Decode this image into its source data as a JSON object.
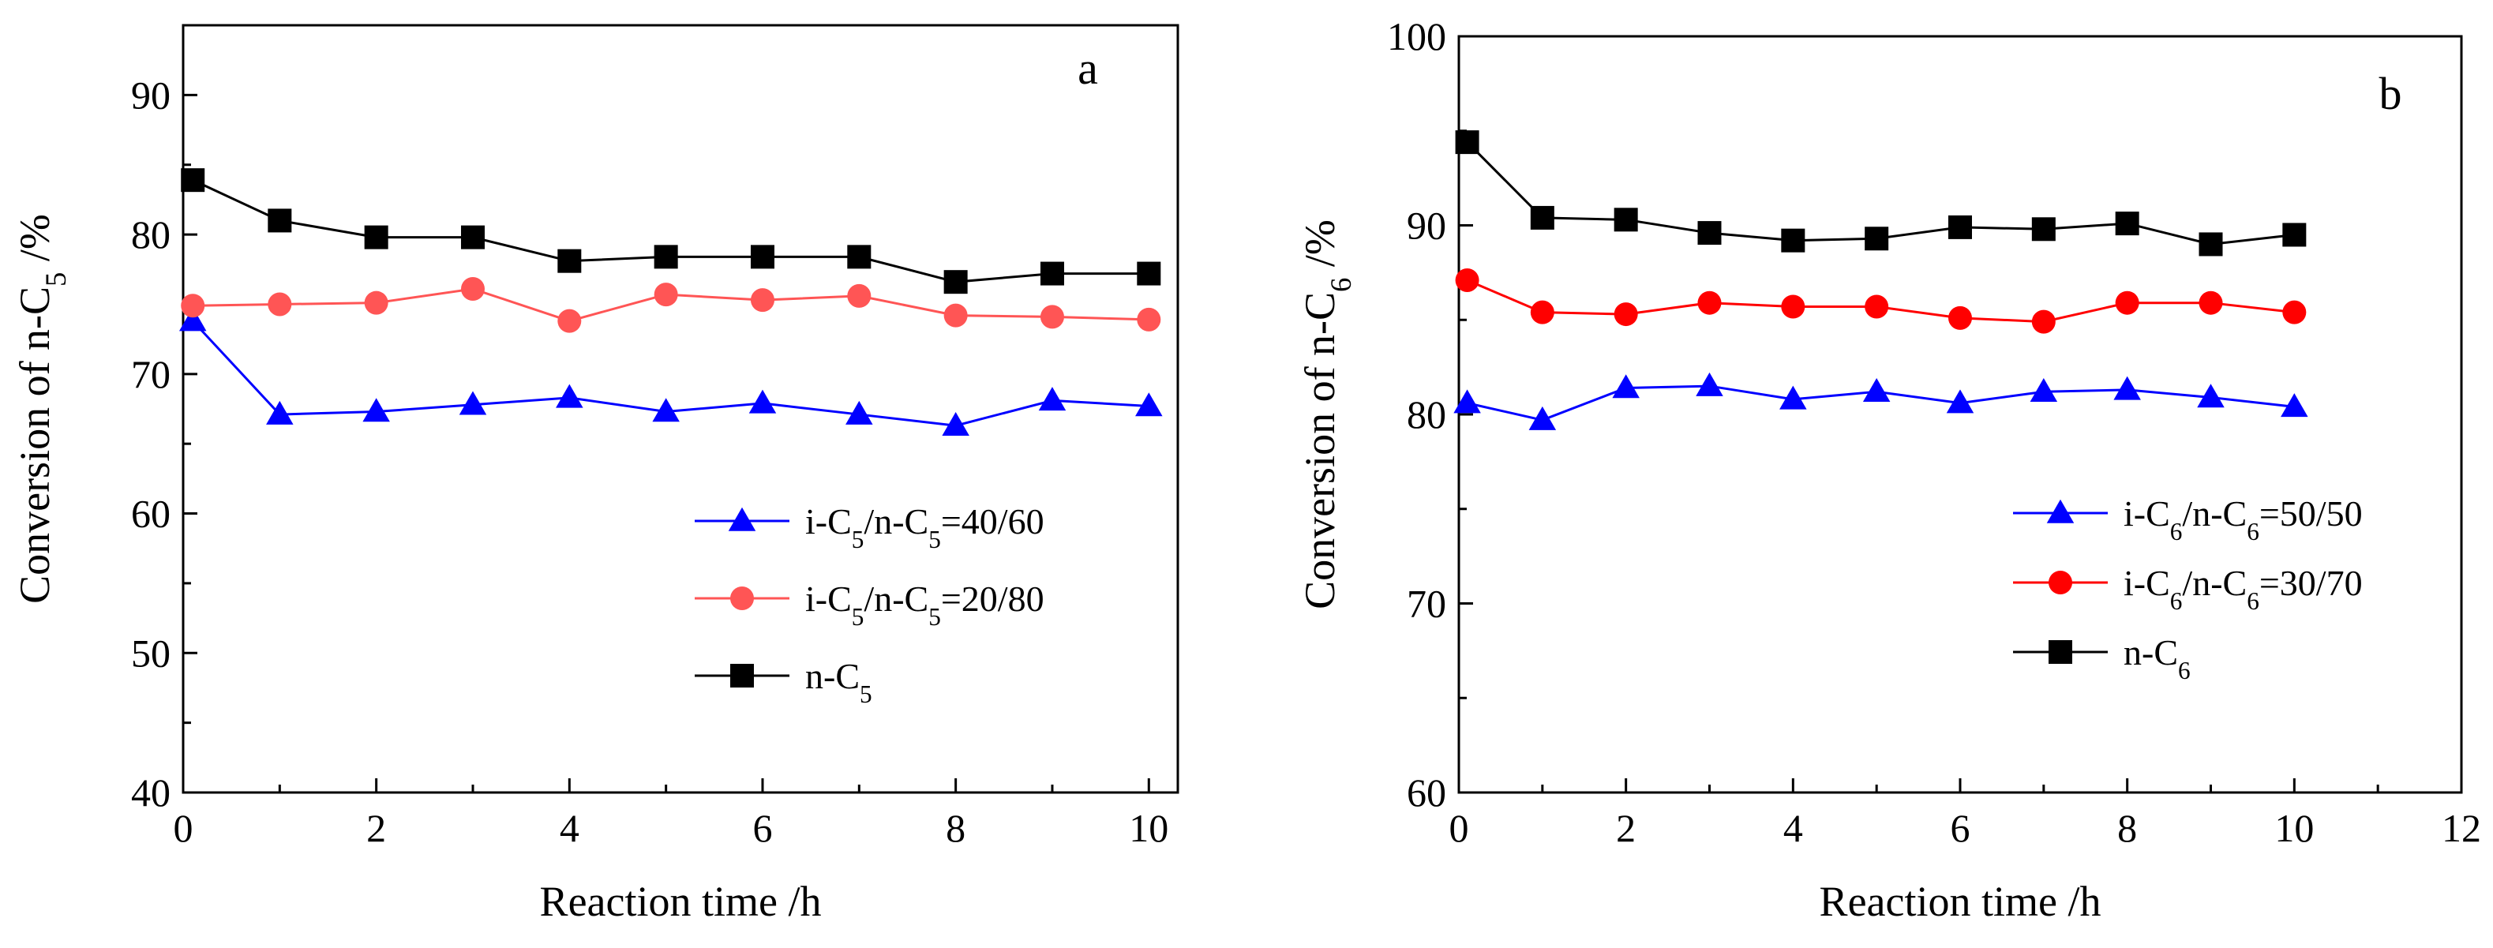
{
  "chart_data": [
    {
      "type": "line",
      "panel_label": "a",
      "xlabel": "Reaction time  /h",
      "ylabel": "Conversion of n-C5  /%",
      "ylabel_parts": {
        "prefix": "Conversion of n-C",
        "sub": "5",
        "suffix": "  /%"
      },
      "xlim": [
        0,
        10.3
      ],
      "ylim": [
        40,
        95
      ],
      "xticks": [
        0,
        2,
        4,
        6,
        8,
        10
      ],
      "yticks": [
        40,
        50,
        60,
        70,
        80,
        90
      ],
      "x": [
        0.1,
        1,
        2,
        3,
        4,
        5,
        6,
        7,
        8,
        9,
        10
      ],
      "legend_position": "center-right",
      "series": [
        {
          "name": "i-C5/n-C5=40/60",
          "label_parts": [
            {
              "t": "i-C"
            },
            {
              "sub": "5"
            },
            {
              "t": "/n-C"
            },
            {
              "sub": "5"
            },
            {
              "t": "=40/60"
            }
          ],
          "color": "#0000ff",
          "marker": "triangle",
          "values": [
            73.8,
            67.1,
            67.3,
            67.8,
            68.3,
            67.3,
            67.9,
            67.1,
            66.3,
            68.1,
            67.7
          ]
        },
        {
          "name": "i-C5/n-C5=20/80",
          "label_parts": [
            {
              "t": "i-C"
            },
            {
              "sub": "5"
            },
            {
              "t": "/n-C"
            },
            {
              "sub": "5"
            },
            {
              "t": "=20/80"
            }
          ],
          "color": "#ff5555",
          "marker": "circle",
          "values": [
            74.9,
            75.0,
            75.1,
            76.1,
            73.8,
            75.7,
            75.3,
            75.6,
            74.2,
            74.1,
            73.9
          ]
        },
        {
          "name": "n-C5",
          "label_parts": [
            {
              "t": "n-C"
            },
            {
              "sub": "5"
            }
          ],
          "color": "#000000",
          "marker": "square",
          "values": [
            83.9,
            81.0,
            79.8,
            79.8,
            78.1,
            78.4,
            78.4,
            78.4,
            76.6,
            77.2,
            77.2
          ]
        }
      ]
    },
    {
      "type": "line",
      "panel_label": "b",
      "xlabel": "Reaction time  /h",
      "ylabel": "Conversion of n-C6  /%",
      "ylabel_parts": {
        "prefix": "Conversion of n-C",
        "sub": "6",
        "suffix": "  /%"
      },
      "xlim": [
        0,
        12
      ],
      "ylim": [
        60,
        100
      ],
      "xticks": [
        0,
        2,
        4,
        6,
        8,
        10,
        12
      ],
      "yticks": [
        60,
        70,
        80,
        90,
        100
      ],
      "x": [
        0.1,
        1,
        2,
        3,
        4,
        5,
        6,
        7,
        8,
        9,
        10
      ],
      "legend_position": "center-right",
      "series": [
        {
          "name": "i-C6/n-C6=50/50",
          "label_parts": [
            {
              "t": "i-C"
            },
            {
              "sub": "6"
            },
            {
              "t": "/n-C"
            },
            {
              "sub": "6"
            },
            {
              "t": "=50/50"
            }
          ],
          "color": "#0000ff",
          "marker": "triangle",
          "values": [
            80.6,
            79.7,
            81.4,
            81.5,
            80.8,
            81.2,
            80.6,
            81.2,
            81.3,
            80.9,
            80.4
          ]
        },
        {
          "name": "i-C6/n-C6=30/70",
          "label_parts": [
            {
              "t": "i-C"
            },
            {
              "sub": "6"
            },
            {
              "t": "/n-C"
            },
            {
              "sub": "6"
            },
            {
              "t": "=30/70"
            }
          ],
          "color": "#ff0000",
          "marker": "circle",
          "values": [
            87.1,
            85.4,
            85.3,
            85.9,
            85.7,
            85.7,
            85.1,
            84.9,
            85.9,
            85.9,
            85.4
          ]
        },
        {
          "name": "n-C6",
          "label_parts": [
            {
              "t": "n-C"
            },
            {
              "sub": "6"
            }
          ],
          "color": "#000000",
          "marker": "square",
          "values": [
            94.4,
            90.4,
            90.3,
            89.6,
            89.2,
            89.3,
            89.9,
            89.8,
            90.1,
            89.0,
            89.5
          ]
        }
      ]
    }
  ]
}
